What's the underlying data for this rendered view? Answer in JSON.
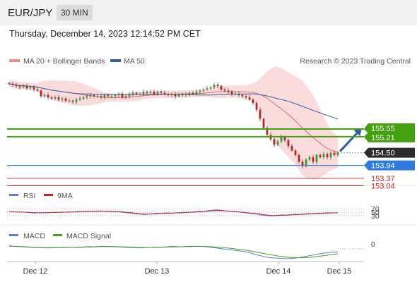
{
  "header": {
    "pair": "EUR/JPY",
    "timeframe": "30 MIN"
  },
  "datetime": "Thursday, December 14, 2023 12:14:52 PM CET",
  "legend": {
    "main": [
      {
        "label": "MA 20 + Bollinger Bands",
        "color": "#f28b8b"
      },
      {
        "label": "MA 50",
        "color": "#3a5f9e"
      }
    ],
    "rsi": [
      {
        "label": "RSI",
        "color": "#5b7fd6"
      },
      {
        "label": "9MA",
        "color": "#d42020"
      }
    ],
    "macd": [
      {
        "label": "MACD",
        "color": "#5b7fd6"
      },
      {
        "label": "MACD Signal",
        "color": "#44a020"
      }
    ]
  },
  "credit": "Research © 2023 Trading Central",
  "chart_data": {
    "type": "candlestick",
    "x_labels": [
      "Dec 12",
      "Dec 13",
      "Dec 14",
      "Dec 15"
    ],
    "ylim": [
      152.9,
      158.2
    ],
    "close": [
      157.55,
      157.5,
      157.45,
      157.4,
      157.45,
      157.35,
      157.4,
      157.3,
      157.25,
      157.0,
      157.05,
      156.95,
      156.9,
      156.95,
      156.85,
      156.9,
      156.8,
      156.8,
      156.75,
      156.85,
      156.9,
      156.95,
      157.0,
      157.05,
      157.0,
      157.0,
      156.95,
      157.05,
      157.0,
      157.0,
      157.05,
      157.1,
      156.95,
      157.0,
      157.1,
      157.15,
      157.1,
      157.1,
      157.2,
      157.15,
      157.2,
      157.1,
      157.2,
      157.15,
      157.1,
      157.05,
      157.1,
      157.0,
      157.1,
      157.05,
      157.1,
      157.15,
      157.1,
      157.2,
      157.25,
      157.3,
      157.35,
      157.4,
      157.5,
      157.45,
      157.3,
      157.25,
      157.2,
      157.1,
      157.1,
      157.05,
      157.0,
      156.95,
      156.85,
      156.7,
      156.4,
      156.0,
      155.6,
      155.3,
      155.1,
      154.85,
      155.0,
      155.2,
      155.05,
      154.8,
      154.6,
      154.4,
      154.1,
      153.9,
      154.2,
      154.3,
      154.1,
      154.4,
      154.3,
      154.45,
      154.3,
      154.5,
      154.4,
      154.5
    ],
    "levels": [
      {
        "value": "155.55",
        "color": "#44a010"
      },
      {
        "value": "155.21",
        "color": "#44a010"
      },
      {
        "value": "154.50",
        "color": "#333333"
      },
      {
        "value": "153.94",
        "color": "#3a7cd8"
      },
      {
        "value": "153.37",
        "color": "#cc2222"
      },
      {
        "value": "153.04",
        "color": "#cc2222"
      }
    ],
    "rsi_levels": [
      "70",
      "50",
      "30"
    ],
    "rsi_ylim": [
      0,
      100
    ],
    "rsi": [
      52,
      53,
      51,
      50,
      51,
      49,
      48,
      46,
      45,
      47,
      46,
      48,
      47,
      49,
      50,
      49,
      51,
      50,
      52,
      51,
      53,
      55,
      54,
      56,
      55,
      57,
      56,
      58,
      57,
      55,
      56,
      54,
      53,
      52,
      50,
      48,
      46,
      44,
      42,
      40,
      38,
      36,
      38,
      40,
      42,
      44,
      43,
      45,
      46,
      44,
      45,
      47,
      48,
      49,
      50,
      51,
      52,
      54,
      55,
      56,
      58,
      60,
      62,
      64,
      62,
      60,
      58,
      56,
      54,
      52,
      50,
      48,
      46,
      44,
      42,
      40,
      36,
      32,
      30,
      29,
      28,
      30,
      32,
      34,
      33,
      35,
      36,
      38,
      37,
      39,
      40,
      42,
      41,
      43,
      45,
      44,
      46,
      47,
      45,
      46,
      47
    ],
    "rsi_ma": [
      53,
      52,
      52,
      51,
      51,
      50,
      49,
      48,
      47,
      47,
      47,
      47,
      47,
      48,
      48,
      49,
      49,
      50,
      50,
      51,
      52,
      53,
      53,
      54,
      55,
      55,
      56,
      56,
      56,
      56,
      56,
      55,
      55,
      54,
      53,
      51,
      49,
      47,
      45,
      43,
      41,
      40,
      39,
      39,
      40,
      41,
      42,
      43,
      44,
      44,
      45,
      46,
      46,
      47,
      48,
      49,
      50,
      51,
      52,
      54,
      55,
      57,
      58,
      59,
      60,
      59,
      58,
      57,
      56,
      54,
      52,
      50,
      48,
      46,
      44,
      42,
      40,
      37,
      34,
      32,
      30,
      30,
      30,
      31,
      32,
      33,
      34,
      35,
      36,
      37,
      38,
      39,
      40,
      41,
      42,
      43,
      44,
      45,
      46,
      46,
      47
    ],
    "macd_label": "0",
    "macd_ylim": [
      -0.55,
      0.35
    ],
    "macd": [
      0.15,
      0.12,
      0.11,
      0.1,
      0.09,
      0.08,
      0.07,
      0.06,
      0.05,
      0.05,
      0.04,
      0.04,
      0.04,
      0.05,
      0.06,
      0.05,
      0.06,
      0.07,
      0.06,
      0.07,
      0.08,
      0.08,
      0.09,
      0.1,
      0.09,
      0.1,
      0.11,
      0.12,
      0.11,
      0.1,
      0.1,
      0.09,
      0.08,
      0.07,
      0.06,
      0.06,
      0.05,
      0.04,
      0.04,
      0.05,
      0.06,
      0.07,
      0.08,
      0.07,
      0.08,
      0.09,
      0.1,
      0.11,
      0.1,
      0.09,
      0.1,
      0.11,
      0.12,
      0.11,
      0.12,
      0.11,
      0.1,
      0.08,
      0.06,
      0.04,
      0.02,
      0.0,
      -0.02,
      -0.04,
      -0.06,
      -0.08,
      -0.1,
      -0.12,
      -0.15,
      -0.19,
      -0.24,
      -0.28,
      -0.32,
      -0.36,
      -0.39,
      -0.41,
      -0.42,
      -0.43,
      -0.44,
      -0.45,
      -0.45,
      -0.44,
      -0.42,
      -0.4,
      -0.37,
      -0.34,
      -0.31,
      -0.28,
      -0.25,
      -0.22,
      -0.2,
      -0.18,
      -0.16,
      -0.15,
      -0.14
    ],
    "macd_signal": [
      0.12,
      0.12,
      0.11,
      0.1,
      0.1,
      0.09,
      0.08,
      0.07,
      0.06,
      0.06,
      0.05,
      0.05,
      0.05,
      0.05,
      0.05,
      0.05,
      0.05,
      0.06,
      0.06,
      0.06,
      0.07,
      0.07,
      0.08,
      0.08,
      0.09,
      0.09,
      0.1,
      0.1,
      0.1,
      0.1,
      0.1,
      0.1,
      0.09,
      0.09,
      0.08,
      0.08,
      0.07,
      0.06,
      0.06,
      0.06,
      0.06,
      0.06,
      0.07,
      0.07,
      0.07,
      0.08,
      0.08,
      0.09,
      0.09,
      0.09,
      0.1,
      0.1,
      0.1,
      0.11,
      0.11,
      0.11,
      0.11,
      0.1,
      0.09,
      0.08,
      0.07,
      0.06,
      0.04,
      0.03,
      0.01,
      -0.01,
      -0.03,
      -0.05,
      -0.07,
      -0.1,
      -0.13,
      -0.16,
      -0.19,
      -0.22,
      -0.25,
      -0.28,
      -0.3,
      -0.33,
      -0.35,
      -0.37,
      -0.39,
      -0.4,
      -0.41,
      -0.41,
      -0.41,
      -0.4,
      -0.39,
      -0.37,
      -0.35,
      -0.33,
      -0.31,
      -0.29,
      -0.27,
      -0.25,
      -0.23
    ]
  }
}
